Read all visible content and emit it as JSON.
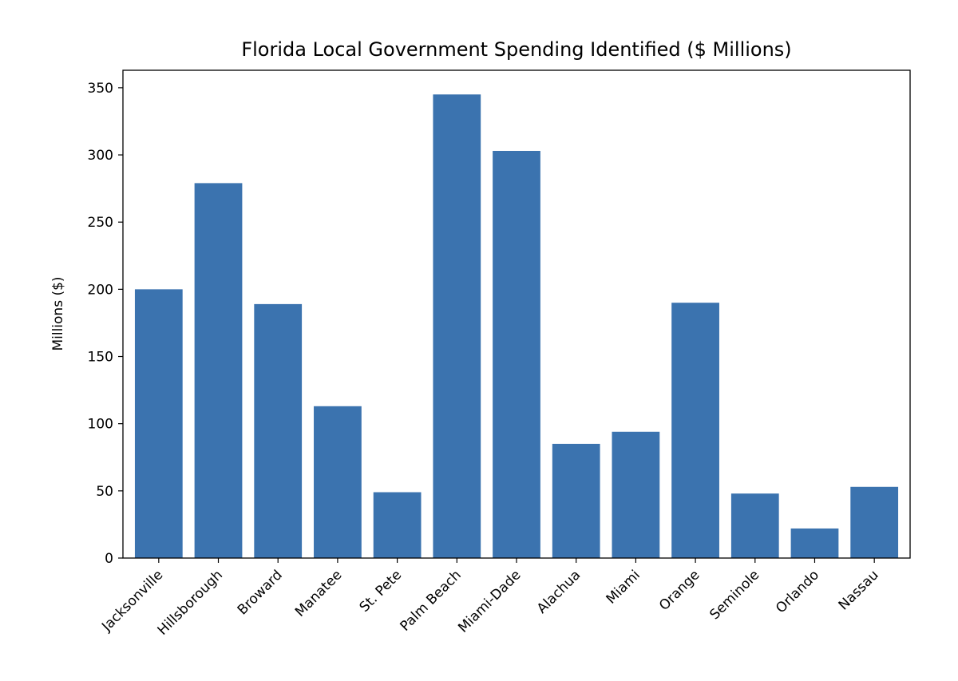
{
  "chart_data": {
    "type": "bar",
    "title": "Florida Local Government Spending Identified ($ Millions)",
    "xlabel": "",
    "ylabel": "Millions ($)",
    "categories": [
      "Jacksonville",
      "Hillsborough",
      "Broward",
      "Manatee",
      "St. Pete",
      "Palm Beach",
      "Miami-Dade",
      "Alachua",
      "Miami",
      "Orange",
      "Seminole",
      "Orlando",
      "Nassau"
    ],
    "values": [
      200,
      279,
      189,
      113,
      49,
      345,
      303,
      85,
      94,
      190,
      48,
      22,
      53
    ],
    "ylim": [
      0,
      363
    ],
    "yticks": [
      0,
      50,
      100,
      150,
      200,
      250,
      300,
      350
    ],
    "grid": false,
    "bar_color": "#3b73af"
  }
}
